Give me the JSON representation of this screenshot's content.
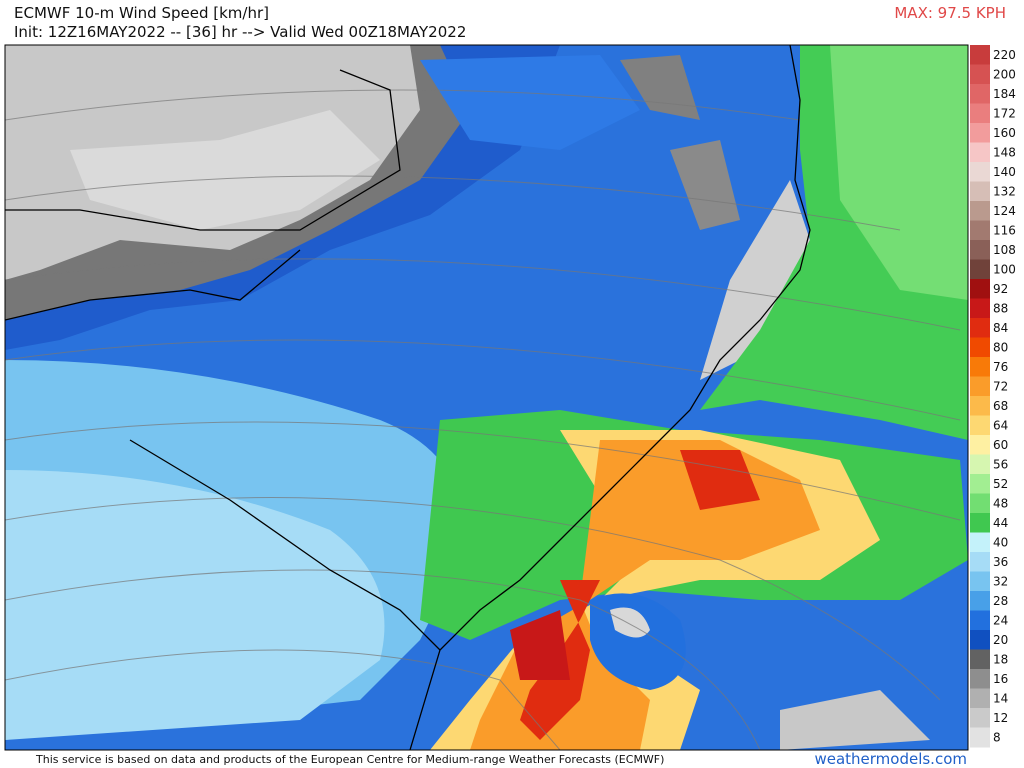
{
  "header": {
    "title": "ECMWF 10-m Wind Speed [km/hr]",
    "subtitle": "Init: 12Z16MAY2022 -- [36] hr --> Valid Wed 00Z18MAY2022",
    "max_label": "MAX: 97.5 KPH"
  },
  "colorbar": {
    "levels": [
      {
        "label": 220,
        "color": "#c83c3c"
      },
      {
        "label": 200,
        "color": "#d65252"
      },
      {
        "label": 184,
        "color": "#e06666"
      },
      {
        "label": 172,
        "color": "#ea7e7e"
      },
      {
        "label": 160,
        "color": "#f29c9c"
      },
      {
        "label": 148,
        "color": "#f6c6c6"
      },
      {
        "label": 140,
        "color": "#ead8d4"
      },
      {
        "label": 132,
        "color": "#d6beb6"
      },
      {
        "label": 124,
        "color": "#ba9a8e"
      },
      {
        "label": 116,
        "color": "#a27a70"
      },
      {
        "label": 108,
        "color": "#8a6058"
      },
      {
        "label": 100,
        "color": "#70423a"
      },
      {
        "label": 92,
        "color": "#a01010"
      },
      {
        "label": 88,
        "color": "#c81818"
      },
      {
        "label": 84,
        "color": "#e02c10"
      },
      {
        "label": 80,
        "color": "#f04a00"
      },
      {
        "label": 76,
        "color": "#f87a08"
      },
      {
        "label": 72,
        "color": "#fa9c2a"
      },
      {
        "label": 68,
        "color": "#fcba4a"
      },
      {
        "label": 64,
        "color": "#fdd872"
      },
      {
        "label": 60,
        "color": "#fef0a2"
      },
      {
        "label": 56,
        "color": "#d6f6b0"
      },
      {
        "label": 52,
        "color": "#a2ee92"
      },
      {
        "label": 48,
        "color": "#72de72"
      },
      {
        "label": 44,
        "color": "#40c850"
      },
      {
        "label": 40,
        "color": "#c4f2fa"
      },
      {
        "label": 36,
        "color": "#a6dcf6"
      },
      {
        "label": 32,
        "color": "#78c4f0"
      },
      {
        "label": 28,
        "color": "#48a0e8"
      },
      {
        "label": 24,
        "color": "#2270de"
      },
      {
        "label": 20,
        "color": "#1050c0"
      },
      {
        "label": 18,
        "color": "#626262"
      },
      {
        "label": 16,
        "color": "#8e8e8e"
      },
      {
        "label": 14,
        "color": "#b0b0b0"
      },
      {
        "label": 12,
        "color": "#cacaca"
      },
      {
        "label": 8,
        "color": "#e2e2e2"
      }
    ]
  },
  "footer": {
    "credit": "This service is based on data and products of the European Centre for Medium-range Weather Forecasts (ECMWF)",
    "site": "weathermodels.com"
  }
}
